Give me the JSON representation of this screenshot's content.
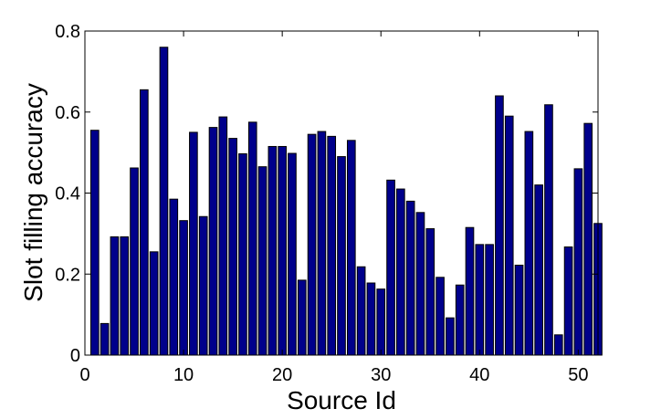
{
  "chart_data": {
    "type": "bar",
    "title": "",
    "xlabel": "Source Id",
    "ylabel": "Slot filling accuracy",
    "xlim": [
      0,
      52
    ],
    "ylim": [
      0,
      0.8
    ],
    "xticks": [
      0,
      10,
      20,
      30,
      40,
      50
    ],
    "yticks": [
      0,
      0.2,
      0.4,
      0.6,
      0.8
    ],
    "ytick_labels": [
      "0",
      "0.2",
      "0.4",
      "0.6",
      "0.8"
    ],
    "grid": false,
    "bar_color": "#00008b",
    "x": [
      1,
      2,
      3,
      4,
      5,
      6,
      7,
      8,
      9,
      10,
      11,
      12,
      13,
      14,
      15,
      16,
      17,
      18,
      19,
      20,
      21,
      22,
      23,
      24,
      25,
      26,
      27,
      28,
      29,
      30,
      31,
      32,
      33,
      34,
      35,
      36,
      37,
      38,
      39,
      40,
      41,
      42,
      43,
      44,
      45,
      46,
      47,
      48,
      49,
      50,
      51,
      52
    ],
    "values": [
      0.555,
      0.078,
      0.292,
      0.292,
      0.462,
      0.655,
      0.255,
      0.76,
      0.385,
      0.332,
      0.55,
      0.342,
      0.562,
      0.588,
      0.535,
      0.497,
      0.575,
      0.465,
      0.515,
      0.515,
      0.498,
      0.185,
      0.545,
      0.552,
      0.54,
      0.49,
      0.53,
      0.218,
      0.178,
      0.163,
      0.432,
      0.41,
      0.38,
      0.352,
      0.312,
      0.192,
      0.092,
      0.173,
      0.315,
      0.273,
      0.273,
      0.64,
      0.59,
      0.222,
      0.552,
      0.42,
      0.618,
      0.05,
      0.267,
      0.46,
      0.572,
      0.325
    ]
  }
}
